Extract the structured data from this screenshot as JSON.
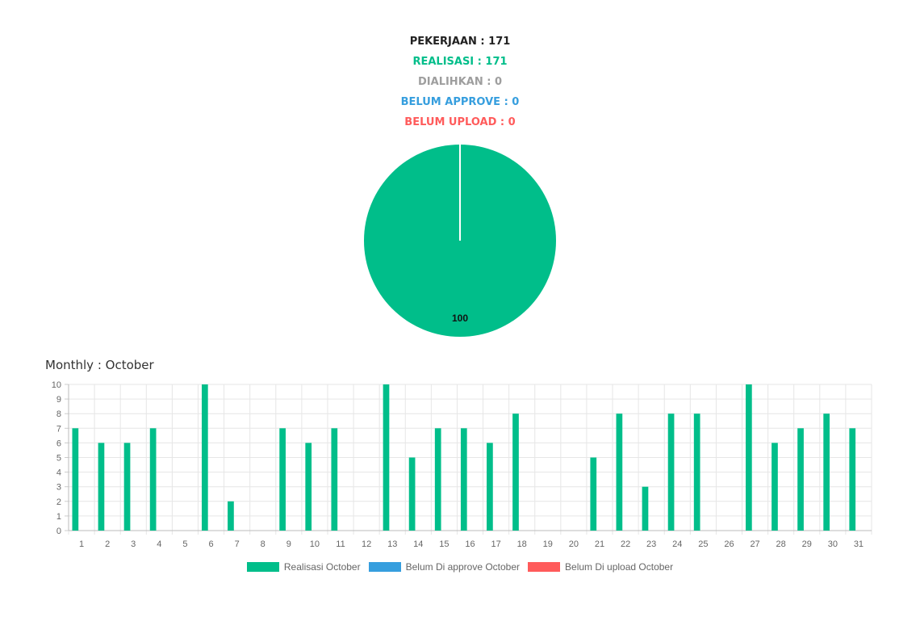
{
  "summary": {
    "total": "PEKERJAAN : 171",
    "realisasi": "REALISASI : 171",
    "dialihkan": "DIALIHKAN : 0",
    "belum_approve": "BELUM APPROVE : 0",
    "belum_upload": "BELUM UPLOAD : 0"
  },
  "colors": {
    "realisasi": "#00BE8A",
    "dialihkan": "#9E9E9E",
    "belum_approve": "#369EDE",
    "belum_upload": "#FF5B5B",
    "text": "#222222",
    "grid": "#E6E6E6",
    "axis_text": "#666666"
  },
  "monthly_title": "Monthly : October",
  "chart_data": [
    {
      "type": "pie",
      "categories": [
        "Realisasi",
        "Dialihkan",
        "Belum Approve",
        "Belum Upload"
      ],
      "values": [
        100,
        0,
        0,
        0
      ],
      "data_label": "100"
    },
    {
      "type": "bar",
      "categories": [
        "1",
        "2",
        "3",
        "4",
        "5",
        "6",
        "7",
        "8",
        "9",
        "10",
        "11",
        "12",
        "13",
        "14",
        "15",
        "16",
        "17",
        "18",
        "19",
        "20",
        "21",
        "22",
        "23",
        "24",
        "25",
        "26",
        "27",
        "28",
        "29",
        "30",
        "31"
      ],
      "series": [
        {
          "name": "Realisasi October",
          "color": "#00BE8A",
          "values": [
            7,
            6,
            6,
            7,
            0,
            10,
            2,
            0,
            7,
            6,
            7,
            0,
            10,
            5,
            7,
            7,
            6,
            8,
            0,
            0,
            5,
            8,
            3,
            8,
            8,
            0,
            10,
            6,
            7,
            8,
            7
          ]
        },
        {
          "name": "Belum Di approve October",
          "color": "#369EDE",
          "values": [
            0,
            0,
            0,
            0,
            0,
            0,
            0,
            0,
            0,
            0,
            0,
            0,
            0,
            0,
            0,
            0,
            0,
            0,
            0,
            0,
            0,
            0,
            0,
            0,
            0,
            0,
            0,
            0,
            0,
            0,
            0
          ]
        },
        {
          "name": "Belum Di upload October",
          "color": "#FF5B5B",
          "values": [
            0,
            0,
            0,
            0,
            0,
            0,
            0,
            0,
            0,
            0,
            0,
            0,
            0,
            0,
            0,
            0,
            0,
            0,
            0,
            0,
            0,
            0,
            0,
            0,
            0,
            0,
            0,
            0,
            0,
            0,
            0
          ]
        }
      ],
      "ylim": [
        0,
        10
      ],
      "yticks": [
        "0",
        "1",
        "2",
        "3",
        "4",
        "5",
        "6",
        "7",
        "8",
        "9",
        "10"
      ],
      "grid": true,
      "legend_position": "bottom"
    }
  ]
}
